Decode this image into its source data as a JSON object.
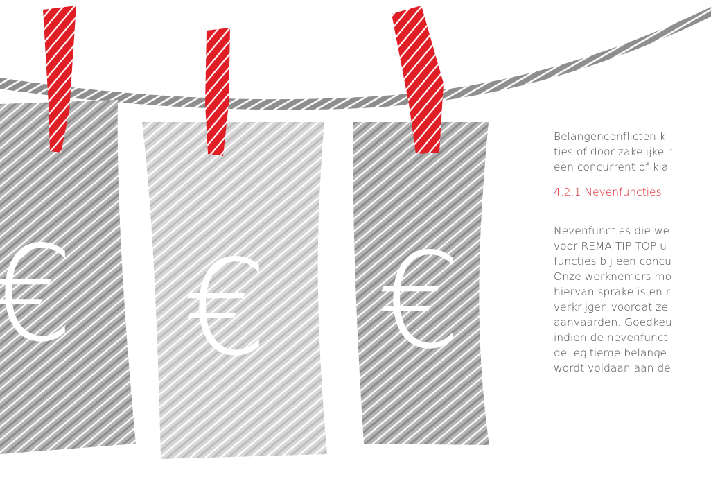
{
  "colors": {
    "accent_red": "#e01e26",
    "sketch_dark_gray": "#9a9a9a",
    "sketch_light_gray": "#c9c9c9",
    "text_gray": "#4a4a4a"
  },
  "illustration": {
    "icon_names": [
      "clothesline-icon",
      "clothespin-icon",
      "euro-banknote-icon",
      "euro-symbol-icon"
    ],
    "currency_symbol": "€"
  },
  "intro_lines": [
    "Belangenconflicten k",
    "ties of door zakelijke r",
    "een concurrent of kla"
  ],
  "section": {
    "heading": "4.2.1 Nevenfuncties",
    "lines": [
      "Nevenfuncties die we",
      "voor REMA TIP TOP u",
      "functies bij een concu",
      "Onze werknemers mo",
      "hiervan sprake is en r",
      "verkrijgen voordat ze",
      "aanvaarden. Goedkeu",
      "indien de nevenfunct",
      "de legitieme belange",
      "wordt voldaan aan de"
    ]
  }
}
